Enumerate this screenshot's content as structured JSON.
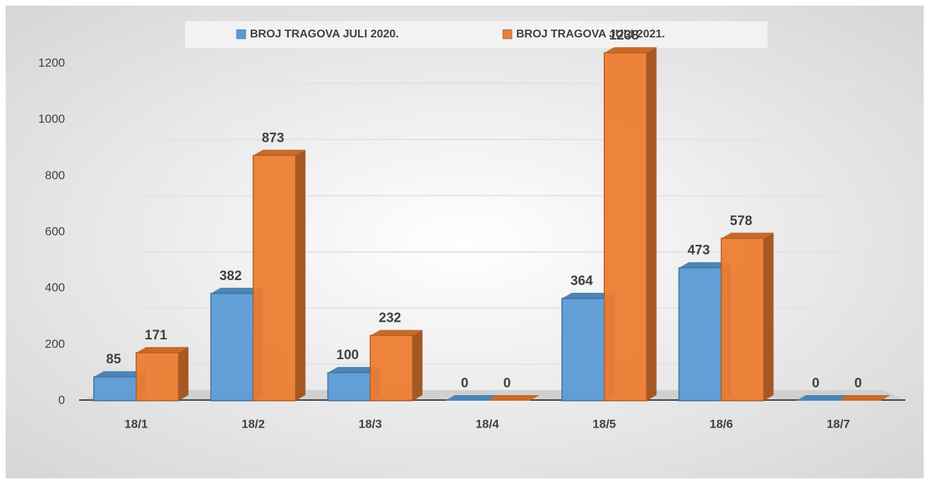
{
  "chart_data": {
    "type": "bar",
    "categories": [
      "18/1",
      "18/2",
      "18/3",
      "18/4",
      "18/5",
      "18/6",
      "18/7"
    ],
    "series": [
      {
        "name": "BROJ TRAGOVA JULI 2020.",
        "color": "#5b9bd5",
        "values": [
          85,
          382,
          100,
          0,
          364,
          473,
          0
        ]
      },
      {
        "name": "BROJ TRAGOVA JULI 2021.",
        "color": "#ed7d31",
        "values": [
          171,
          873,
          232,
          0,
          1238,
          578,
          0
        ]
      }
    ],
    "ylim": [
      0,
      1200
    ],
    "yticks": [
      0,
      200,
      400,
      600,
      800,
      1000,
      1200
    ],
    "grid": true,
    "legend": "top"
  }
}
